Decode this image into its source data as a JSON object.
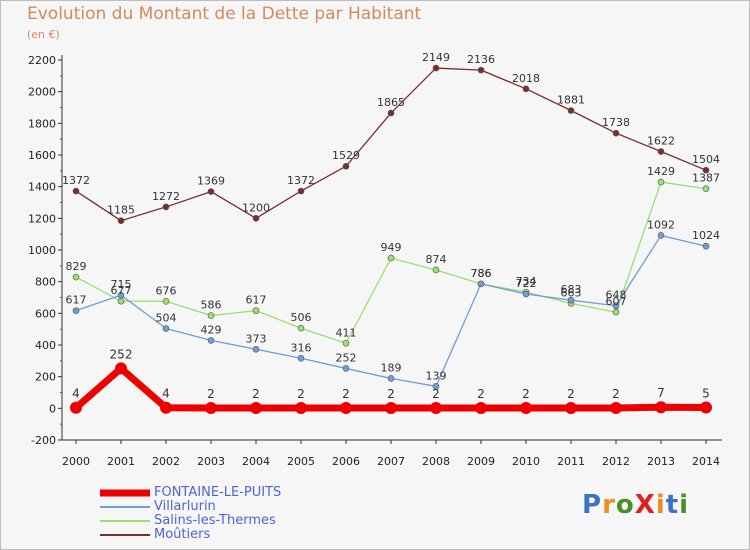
{
  "title": "Evolution du Montant de la Dette par Habitant",
  "unit_label": "(en €)",
  "logo": {
    "text": "ProXiti",
    "colors": [
      "#3a73c4",
      "#f28c1d",
      "#4a8f2a",
      "#e02020",
      "#f28c1d",
      "#3a73c4",
      "#4a8f2a"
    ]
  },
  "chart_data": {
    "type": "line",
    "x": [
      "2000",
      "2001",
      "2002",
      "2003",
      "2004",
      "2005",
      "2006",
      "2007",
      "2008",
      "2009",
      "2010",
      "2011",
      "2012",
      "2013",
      "2014"
    ],
    "ylim": [
      -200,
      2200
    ],
    "yticks": [
      -200,
      0,
      200,
      400,
      600,
      800,
      1000,
      1200,
      1400,
      1600,
      1800,
      2000,
      2200
    ],
    "grid": false,
    "legend_position": "bottom-left",
    "series": [
      {
        "name": "FONTAINE-LE-PUITS",
        "color": "#ee0000",
        "values": [
          4,
          252,
          4,
          2,
          2,
          2,
          2,
          2,
          2,
          2,
          2,
          2,
          2,
          7,
          5
        ],
        "labels": [
          "4",
          "252",
          "4",
          "2",
          "2",
          "2",
          "2",
          "2",
          "2",
          "2",
          "2",
          "2",
          "2",
          "7",
          "5"
        ]
      },
      {
        "name": "Villarlurin",
        "color": "#6e9ed4",
        "values": [
          617,
          715,
          504,
          429,
          373,
          316,
          252,
          189,
          139,
          786,
          722,
          683,
          648,
          1092,
          1024
        ],
        "labels": [
          "617",
          "715",
          "504",
          "429",
          "373",
          "316",
          "252",
          "189",
          "139",
          "786",
          "722",
          "683",
          "648",
          "1092",
          "1024"
        ]
      },
      {
        "name": "Salins-les-Thermes",
        "color": "#99e06e",
        "values": [
          829,
          677,
          676,
          586,
          617,
          506,
          411,
          949,
          874,
          786,
          734,
          663,
          607,
          1429,
          1387
        ],
        "labels": [
          "829",
          "677",
          "676",
          "586",
          "617",
          "506",
          "411",
          "949",
          "874",
          "786",
          "734",
          "663",
          "607",
          "1429",
          "1387"
        ]
      },
      {
        "name": "Moûtiers",
        "color": "#7a2d2d",
        "values": [
          1372,
          1185,
          1272,
          1369,
          1200,
          1372,
          1529,
          1865,
          2149,
          2136,
          2018,
          1881,
          1738,
          1622,
          1504
        ],
        "labels": [
          "1372",
          "1185",
          "1272",
          "1369",
          "1200",
          "1372",
          "1529",
          "1865",
          "2149",
          "2136",
          "2018",
          "1881",
          "1738",
          "1622",
          "1504"
        ]
      }
    ]
  }
}
